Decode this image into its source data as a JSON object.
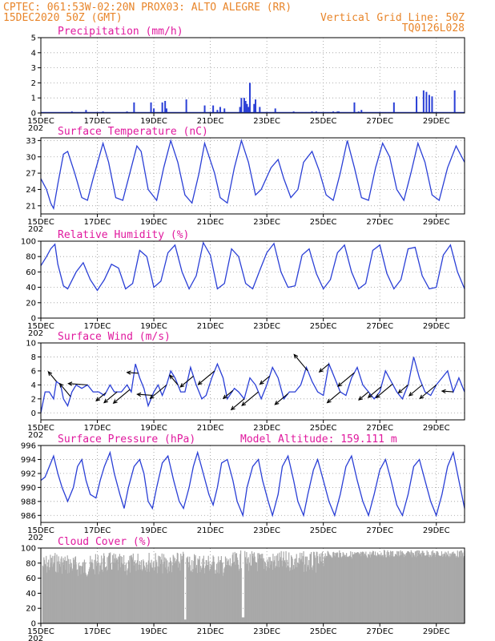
{
  "header": {
    "line1_left": "CPTEC:  061:53W-02:20N  PROX03: ALTO ALEGRE (RR)",
    "line2_left": "15DEC2020 50Z (GMT)",
    "line2_right": "Vertical Grid Line: 50Z",
    "line3_right": "TQ0126L028"
  },
  "x_ticks": [
    "15DEC",
    "17DEC",
    "19DEC",
    "21DEC",
    "23DEC",
    "25DEC",
    "27DEC",
    "29DEC"
  ],
  "x_tick_days": [
    0,
    2,
    4,
    6,
    8,
    10,
    12,
    14
  ],
  "year_fragment": "202",
  "colors": {
    "line": "#2a3fd6",
    "title": "#e0199e",
    "header": "#e8852a",
    "cloud": "#a9a9a9",
    "arrow": "#000000"
  },
  "chart_data": [
    {
      "id": "precip",
      "type": "bar",
      "title": "Precipitation (mm/h)",
      "ylim": [
        0,
        5
      ],
      "yticks": [
        0,
        1,
        2,
        3,
        4,
        5
      ],
      "xlim": [
        0,
        15
      ],
      "x": [
        1.1,
        1.6,
        2.2,
        3.05,
        3.3,
        3.9,
        4.0,
        4.3,
        4.4,
        4.45,
        5.15,
        5.8,
        6.1,
        6.25,
        6.35,
        6.5,
        7.05,
        7.1,
        7.2,
        7.25,
        7.3,
        7.35,
        7.4,
        7.55,
        7.6,
        7.75,
        8.3,
        8.95,
        9.6,
        9.75,
        10.35,
        10.5,
        10.55,
        11.1,
        11.25,
        11.35,
        12.5,
        13.3,
        13.55,
        13.65,
        13.75,
        13.85,
        14.65
      ],
      "values": [
        0.1,
        0.2,
        0.1,
        0.1,
        0.7,
        0.7,
        0.3,
        0.7,
        0.8,
        0.3,
        0.9,
        0.5,
        0.5,
        0.2,
        0.4,
        0.3,
        0.4,
        1.0,
        1.0,
        0.8,
        0.6,
        0.4,
        2.0,
        0.6,
        0.9,
        0.4,
        0.3,
        0.1,
        0.1,
        0.1,
        0.1,
        0.1,
        0.1,
        0.7,
        0.1,
        0.2,
        0.7,
        1.1,
        1.5,
        1.4,
        1.2,
        1.1,
        1.5
      ]
    },
    {
      "id": "temp",
      "type": "line",
      "title": "Surface Temperature (nC)",
      "ylim": [
        19.5,
        33.5
      ],
      "yticks": [
        21,
        24,
        27,
        30,
        33
      ],
      "xlim": [
        0,
        15
      ],
      "x": [
        0,
        0.2,
        0.35,
        0.45,
        0.6,
        0.8,
        0.95,
        1.2,
        1.45,
        1.65,
        1.85,
        2.2,
        2.4,
        2.65,
        2.9,
        3.15,
        3.4,
        3.55,
        3.8,
        4.1,
        4.35,
        4.6,
        4.85,
        5.1,
        5.35,
        5.6,
        5.8,
        6.15,
        6.35,
        6.6,
        6.85,
        7.1,
        7.35,
        7.6,
        7.8,
        8.15,
        8.4,
        8.6,
        8.85,
        9.1,
        9.3,
        9.6,
        9.85,
        10.1,
        10.35,
        10.6,
        10.85,
        11.1,
        11.35,
        11.6,
        11.85,
        12.1,
        12.35,
        12.6,
        12.85,
        13.1,
        13.35,
        13.6,
        13.85,
        14.1,
        14.4,
        14.7,
        15.0
      ],
      "values": [
        26,
        24,
        21.5,
        20.5,
        25,
        30.5,
        31,
        27,
        22.5,
        22,
        26,
        32.5,
        29,
        22.5,
        22,
        27,
        32,
        31,
        24,
        22,
        28,
        33,
        29,
        23,
        21.5,
        27,
        32.5,
        27,
        22.5,
        21.5,
        28,
        33,
        29,
        23,
        24,
        28,
        29.5,
        26,
        22.5,
        24,
        29,
        31,
        27.5,
        23,
        22,
        27,
        33,
        28,
        22.5,
        22,
        28,
        32.5,
        30,
        24,
        22,
        27,
        32.5,
        29,
        23,
        22,
        28,
        32,
        29
      ]
    },
    {
      "id": "rh",
      "type": "line",
      "title": "Relative Humidity (%)",
      "ylim": [
        0,
        100
      ],
      "yticks": [
        0,
        20,
        40,
        60,
        80,
        100
      ],
      "xlim": [
        0,
        15
      ],
      "x": [
        0,
        0.2,
        0.35,
        0.5,
        0.6,
        0.8,
        0.95,
        1.25,
        1.5,
        1.75,
        2.0,
        2.25,
        2.5,
        2.75,
        3.0,
        3.25,
        3.5,
        3.75,
        4.0,
        4.25,
        4.5,
        4.75,
        5.0,
        5.25,
        5.5,
        5.75,
        6.0,
        6.25,
        6.5,
        6.75,
        7.0,
        7.25,
        7.5,
        7.75,
        8.0,
        8.25,
        8.5,
        8.75,
        9.0,
        9.25,
        9.5,
        9.75,
        10.0,
        10.25,
        10.5,
        10.75,
        11.0,
        11.25,
        11.5,
        11.75,
        12.0,
        12.25,
        12.5,
        12.75,
        13.0,
        13.25,
        13.5,
        13.75,
        14.0,
        14.25,
        14.5,
        14.75,
        15.0
      ],
      "values": [
        68,
        80,
        90,
        96,
        70,
        42,
        38,
        60,
        72,
        50,
        36,
        50,
        70,
        65,
        38,
        45,
        88,
        80,
        40,
        48,
        85,
        95,
        60,
        38,
        55,
        98,
        82,
        38,
        45,
        90,
        80,
        45,
        38,
        62,
        85,
        97,
        60,
        40,
        42,
        82,
        90,
        58,
        38,
        50,
        85,
        95,
        60,
        38,
        45,
        88,
        95,
        58,
        38,
        50,
        90,
        92,
        55,
        38,
        40,
        82,
        95,
        60,
        38
      ]
    },
    {
      "id": "wind",
      "type": "line",
      "title": "Surface Wind (m/s)",
      "ylim": [
        -1,
        10
      ],
      "yticks": [
        0,
        2,
        4,
        6,
        8,
        10
      ],
      "xlim": [
        0,
        15
      ],
      "x": [
        0,
        0.15,
        0.3,
        0.45,
        0.55,
        0.7,
        0.8,
        0.95,
        1.1,
        1.25,
        1.45,
        1.65,
        1.85,
        2.05,
        2.25,
        2.45,
        2.6,
        2.85,
        3.05,
        3.2,
        3.35,
        3.5,
        3.65,
        3.8,
        4.0,
        4.15,
        4.3,
        4.45,
        4.6,
        4.75,
        4.95,
        5.1,
        5.3,
        5.5,
        5.7,
        5.85,
        6.05,
        6.25,
        6.45,
        6.6,
        6.85,
        7.0,
        7.2,
        7.4,
        7.6,
        7.8,
        8.0,
        8.2,
        8.4,
        8.6,
        8.8,
        9.0,
        9.2,
        9.4,
        9.6,
        9.8,
        10.0,
        10.2,
        10.4,
        10.6,
        10.8,
        11.0,
        11.2,
        11.4,
        11.6,
        11.8,
        12.0,
        12.2,
        12.4,
        12.6,
        12.8,
        13.0,
        13.2,
        13.4,
        13.6,
        13.8,
        14.0,
        14.2,
        14.4,
        14.6,
        14.8,
        15.0
      ],
      "values": [
        0,
        3,
        3,
        2,
        4.5,
        4,
        2,
        1,
        3,
        4,
        3.5,
        4,
        3,
        3,
        2.5,
        4,
        3,
        3,
        4,
        3,
        7,
        5,
        3.5,
        1,
        3,
        4,
        2.5,
        4,
        6,
        5,
        3,
        3,
        6.5,
        4,
        2,
        2.5,
        5,
        7,
        5,
        2,
        3.5,
        3,
        2,
        5,
        4,
        2,
        4,
        6.5,
        5,
        2,
        3,
        3,
        4,
        6.5,
        4.5,
        3,
        2.5,
        7,
        5,
        3,
        2.5,
        5,
        6.5,
        4,
        3,
        2,
        3,
        6,
        4.5,
        3,
        2,
        4,
        8,
        5,
        3,
        2.5,
        4,
        5,
        6,
        3,
        5,
        3
      ]
    },
    {
      "id": "pressure",
      "type": "line",
      "title": "Surface Pressure (hPa)",
      "subtitle": "Model Altitude: 159.111 m",
      "ylim": [
        985,
        996
      ],
      "yticks": [
        986,
        988,
        990,
        992,
        994,
        996
      ],
      "xlim": [
        0,
        15
      ],
      "x": [
        0,
        0.15,
        0.3,
        0.45,
        0.6,
        0.75,
        0.95,
        1.15,
        1.3,
        1.45,
        1.6,
        1.75,
        1.95,
        2.1,
        2.25,
        2.45,
        2.6,
        2.8,
        2.95,
        3.1,
        3.3,
        3.5,
        3.65,
        3.8,
        3.95,
        4.1,
        4.3,
        4.5,
        4.7,
        4.9,
        5.05,
        5.25,
        5.4,
        5.55,
        5.75,
        5.95,
        6.1,
        6.25,
        6.4,
        6.6,
        6.8,
        6.95,
        7.15,
        7.3,
        7.5,
        7.7,
        7.85,
        8.05,
        8.2,
        8.4,
        8.55,
        8.75,
        8.95,
        9.1,
        9.3,
        9.45,
        9.65,
        9.8,
        10.0,
        10.2,
        10.4,
        10.6,
        10.8,
        11.0,
        11.2,
        11.4,
        11.6,
        11.8,
        12.0,
        12.2,
        12.4,
        12.6,
        12.8,
        13.0,
        13.2,
        13.4,
        13.6,
        13.8,
        14.0,
        14.2,
        14.4,
        14.6,
        14.8,
        15.0
      ],
      "values": [
        991,
        991.5,
        993,
        994.5,
        992,
        990,
        988,
        990,
        993,
        994,
        991,
        989,
        988.5,
        991,
        993,
        995,
        992,
        989,
        987,
        990,
        993,
        994,
        992,
        988,
        987,
        990,
        993.5,
        994.5,
        991,
        988,
        987,
        990,
        993,
        995,
        992,
        989,
        987.5,
        990,
        993.5,
        994,
        991,
        988,
        986,
        990,
        993,
        994,
        991,
        988,
        986,
        989,
        993,
        994.5,
        991,
        988,
        986,
        989,
        992.5,
        994,
        991,
        988,
        986,
        989,
        993,
        994.5,
        991,
        988,
        986,
        989,
        992.5,
        994,
        991,
        987.5,
        986,
        989,
        993,
        994,
        991,
        988,
        986,
        989,
        993,
        995,
        991,
        987
      ]
    },
    {
      "id": "cloud",
      "type": "bar",
      "title": "Cloud Cover (%)",
      "ylim": [
        0,
        100
      ],
      "yticks": [
        0,
        20,
        40,
        60,
        80,
        100
      ],
      "xlim": [
        0,
        15
      ],
      "x": [
        0,
        0.5,
        1.0,
        1.5,
        2.0,
        2.5,
        3.0,
        3.5,
        4.0,
        4.5,
        5.0,
        5.5,
        6.0,
        6.5,
        7.0,
        7.5,
        8.0,
        8.5,
        9.0,
        9.5,
        10.0,
        10.5,
        11.0,
        11.5,
        12.0,
        12.5,
        13.0,
        13.5,
        14.0,
        14.5
      ],
      "values": [
        90,
        95,
        92,
        88,
        93,
        95,
        90,
        97,
        95,
        92,
        96,
        94,
        93,
        90,
        97,
        96,
        95,
        96,
        97,
        95,
        96,
        97,
        96,
        96,
        98,
        97,
        97,
        98,
        97,
        97
      ]
    }
  ],
  "wind_arrows": [
    {
      "x": 0.55,
      "dir": "up-left"
    },
    {
      "x": 1.05,
      "dir": "up-left"
    },
    {
      "x": 1.65,
      "dir": "left"
    },
    {
      "x": 2.3,
      "dir": "down-left"
    },
    {
      "x": 2.7,
      "dir": "down-left"
    },
    {
      "x": 3.15,
      "dir": "down-left"
    },
    {
      "x": 3.45,
      "dir": "left"
    },
    {
      "x": 3.95,
      "dir": "left"
    },
    {
      "x": 4.45,
      "dir": "down-left"
    },
    {
      "x": 4.85,
      "dir": "up-left"
    },
    {
      "x": 5.4,
      "dir": "down-left"
    },
    {
      "x": 6.15,
      "dir": "down-left"
    },
    {
      "x": 6.8,
      "dir": "down-left"
    },
    {
      "x": 7.2,
      "dir": "down-left"
    },
    {
      "x": 7.7,
      "dir": "down-left"
    },
    {
      "x": 8.1,
      "dir": "down-left"
    },
    {
      "x": 8.75,
      "dir": "down-left"
    },
    {
      "x": 9.45,
      "dir": "up-left"
    },
    {
      "x": 10.2,
      "dir": "down-left"
    },
    {
      "x": 10.6,
      "dir": "down-left"
    },
    {
      "x": 11.1,
      "dir": "down-left"
    },
    {
      "x": 11.6,
      "dir": "down-left"
    },
    {
      "x": 12.05,
      "dir": "down-left"
    },
    {
      "x": 12.45,
      "dir": "down-left"
    },
    {
      "x": 13.0,
      "dir": "down-left"
    },
    {
      "x": 13.5,
      "dir": "down-left"
    },
    {
      "x": 14.0,
      "dir": "down-left"
    },
    {
      "x": 14.6,
      "dir": "left"
    }
  ]
}
